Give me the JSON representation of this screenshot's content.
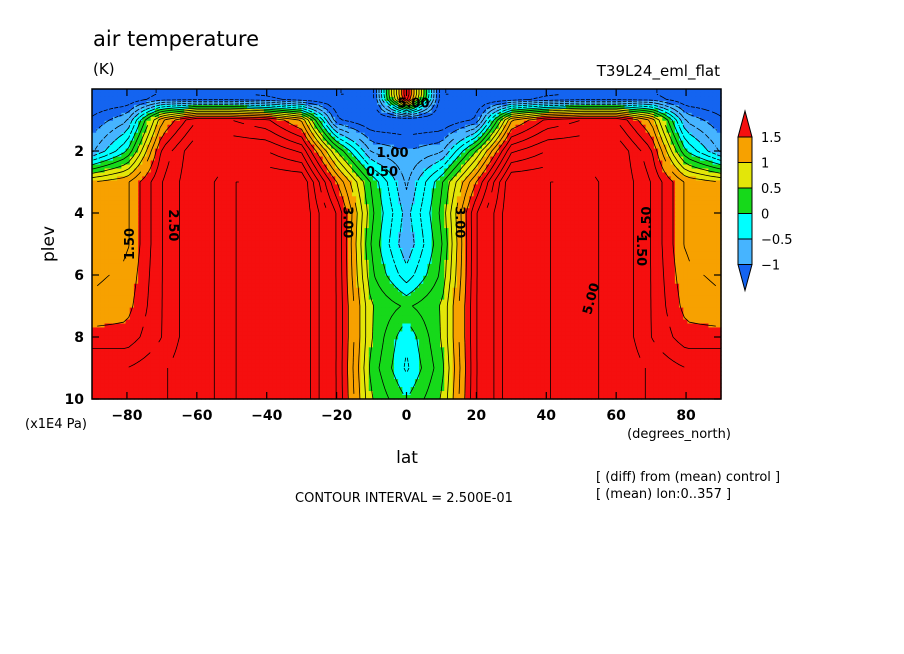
{
  "chart_data": {
    "type": "heatmap",
    "title": "air temperature",
    "units": "(K)",
    "run_label": "T39L24_eml_flat",
    "xlabel": "lat",
    "xunits": "(degrees_north)",
    "ylabel": "plev",
    "yunits": "(x1E4 Pa)",
    "xlim": [
      -90,
      90
    ],
    "ylim": [
      10,
      0
    ],
    "y_reversed": true,
    "x_ticks": [
      -80,
      -60,
      -40,
      -20,
      0,
      20,
      40,
      60,
      80
    ],
    "y_ticks": [
      2,
      4,
      6,
      8,
      10
    ],
    "contour_interval_text": "CONTOUR INTERVAL = 2.500E-01",
    "notes": [
      "[ (diff) from (mean) control ]",
      "[ (mean) lon:0..357 ]"
    ],
    "colorbar": {
      "labels": [
        "1.5",
        "1",
        "0.5",
        "0",
        "-0.5",
        "-1"
      ],
      "colors": [
        "#f50f0f",
        "#f7a100",
        "#e3e609",
        "#16d91a",
        "#00ffff",
        "#46b4ff",
        "#1464f0"
      ]
    },
    "contour_labels": [
      "1.00",
      "0.50",
      "5.00",
      "1.50",
      "2.50",
      "3.00"
    ],
    "lat": [
      -90,
      -80,
      -70,
      -60,
      -50,
      -40,
      -30,
      -20,
      -10,
      0,
      10,
      20,
      30,
      40,
      50,
      60,
      70,
      80,
      90
    ],
    "plev": [
      0.3,
      1,
      2,
      3,
      4,
      5,
      6,
      7,
      8,
      9,
      10
    ],
    "values": [
      [
        -1.5,
        -1.5,
        -1.2,
        -1.2,
        -1.2,
        -1.3,
        -1.5,
        -1.5,
        -1.5,
        2.0,
        -1.5,
        -1.5,
        -1.5,
        -1.3,
        -1.2,
        -1.2,
        -1.2,
        -1.5,
        -1.5
      ],
      [
        -1.2,
        -0.8,
        1.2,
        2.0,
        2.0,
        1.8,
        1.2,
        -1.2,
        -1.5,
        -1.5,
        -1.5,
        -1.2,
        1.2,
        1.8,
        2.0,
        2.0,
        1.2,
        -0.8,
        -1.2
      ],
      [
        -0.8,
        0.0,
        1.8,
        2.5,
        2.5,
        2.5,
        2.2,
        0.5,
        -0.8,
        -1.0,
        -0.8,
        0.5,
        2.2,
        2.5,
        2.5,
        2.5,
        1.8,
        0.0,
        -0.8
      ],
      [
        1.0,
        1.2,
        2.0,
        2.5,
        3.0,
        3.0,
        3.0,
        1.5,
        0.2,
        -0.8,
        0.2,
        1.5,
        3.0,
        3.0,
        3.0,
        2.5,
        2.0,
        1.2,
        1.0
      ],
      [
        1.2,
        1.2,
        2.0,
        2.5,
        3.0,
        3.0,
        3.0,
        2.0,
        0.3,
        -0.6,
        0.3,
        2.0,
        3.0,
        3.0,
        3.0,
        2.5,
        2.0,
        1.2,
        1.2
      ],
      [
        1.2,
        1.2,
        2.0,
        2.5,
        3.0,
        3.0,
        3.0,
        2.0,
        0.2,
        -0.7,
        0.2,
        2.0,
        3.0,
        3.0,
        3.0,
        2.5,
        2.0,
        1.2,
        1.2
      ],
      [
        1.2,
        1.3,
        2.0,
        2.5,
        3.0,
        3.0,
        3.0,
        2.0,
        0.3,
        -0.4,
        0.3,
        2.0,
        3.0,
        3.0,
        3.0,
        2.5,
        2.0,
        1.3,
        1.2
      ],
      [
        1.3,
        1.4,
        2.0,
        2.5,
        3.0,
        3.0,
        3.0,
        2.0,
        0.5,
        0.2,
        0.5,
        2.0,
        3.0,
        3.0,
        3.0,
        2.5,
        2.0,
        1.4,
        1.3
      ],
      [
        1.6,
        1.6,
        2.0,
        2.5,
        3.0,
        3.0,
        3.0,
        2.0,
        0.5,
        -0.2,
        0.5,
        2.0,
        3.0,
        3.0,
        3.0,
        2.5,
        2.0,
        1.6,
        1.6
      ],
      [
        2.0,
        2.0,
        2.2,
        2.5,
        3.0,
        3.0,
        3.0,
        2.0,
        0.4,
        -0.3,
        0.4,
        2.0,
        3.0,
        3.0,
        3.0,
        2.5,
        2.2,
        2.0,
        2.0
      ],
      [
        2.0,
        2.0,
        2.2,
        2.5,
        3.0,
        3.0,
        3.0,
        2.0,
        0.5,
        0.0,
        0.5,
        2.0,
        3.0,
        3.0,
        3.0,
        2.5,
        2.2,
        2.0,
        2.0
      ]
    ]
  }
}
